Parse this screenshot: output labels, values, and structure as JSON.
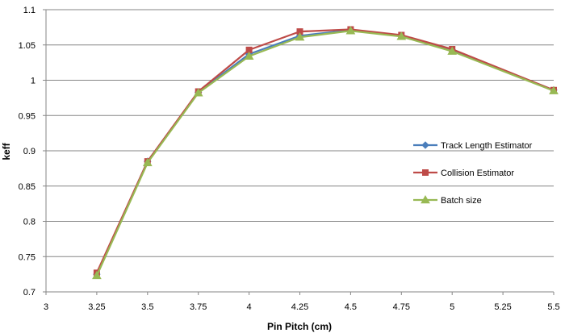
{
  "chart_data": {
    "type": "line",
    "xlabel": "Pin Pitch (cm)",
    "ylabel": "keff",
    "xlim": [
      3,
      5.5
    ],
    "ylim": [
      0.7,
      1.1
    ],
    "xticks": [
      "3",
      "3.25",
      "3.5",
      "3.75",
      "4",
      "4.25",
      "4.5",
      "4.75",
      "5",
      "5.25",
      "5.5"
    ],
    "yticks": [
      "0.7",
      "0.75",
      "0.8",
      "0.85",
      "0.9",
      "0.95",
      "1",
      "1.05",
      "1.1"
    ],
    "x": [
      3.25,
      3.5,
      3.75,
      4,
      4.25,
      4.5,
      4.75,
      5,
      5.5
    ],
    "grid": "horizontal",
    "legend_position": "right",
    "series": [
      {
        "name": "Track Length Estimator",
        "color": "#4A7EBB",
        "marker": "diamond",
        "values": [
          0.725,
          0.885,
          0.983,
          1.037,
          1.063,
          1.071,
          1.063,
          1.043,
          0.986
        ]
      },
      {
        "name": "Collision Estimator",
        "color": "#BE4B48",
        "marker": "square",
        "values": [
          0.727,
          0.885,
          0.984,
          1.043,
          1.069,
          1.072,
          1.064,
          1.044,
          0.986
        ]
      },
      {
        "name": "Batch size",
        "color": "#98B954",
        "marker": "triangle",
        "values": [
          0.723,
          0.883,
          0.982,
          1.034,
          1.061,
          1.07,
          1.062,
          1.041,
          0.985
        ]
      }
    ]
  }
}
